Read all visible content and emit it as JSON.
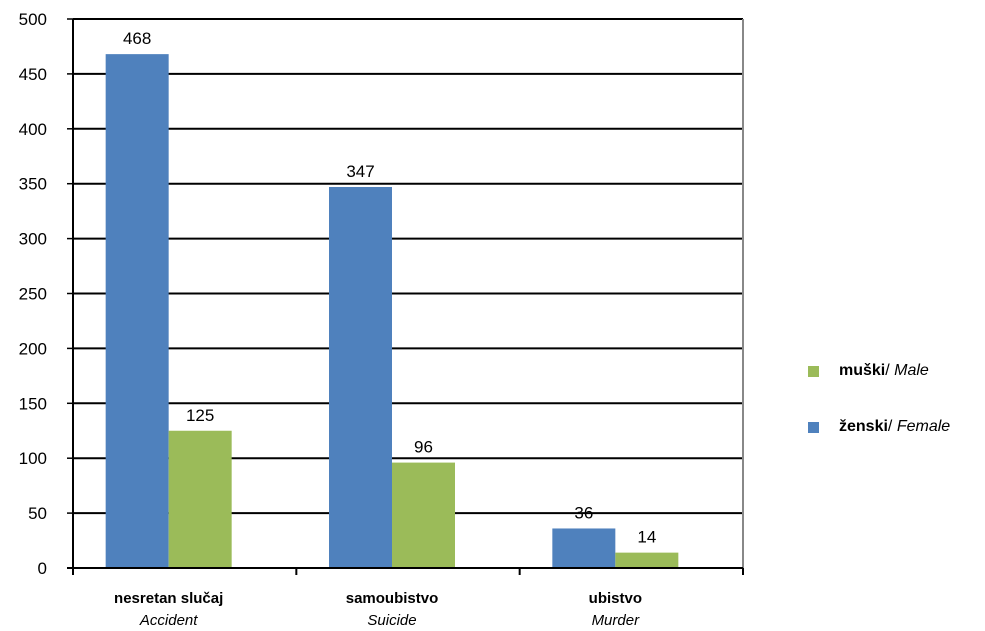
{
  "chart_data": {
    "type": "bar",
    "categories": [
      {
        "main": "nesretan slučaj",
        "sub": "Accident"
      },
      {
        "main": "samoubistvo",
        "sub": "Suicide"
      },
      {
        "main": "ubistvo",
        "sub": "Murder"
      }
    ],
    "series": [
      {
        "name_bold": "ženski",
        "name_rest": "/ ",
        "name_italic": "Female",
        "color": "#4F81BD",
        "values": [
          468,
          347,
          36
        ]
      },
      {
        "name_bold": "muški",
        "name_rest": "/ ",
        "name_italic": "Male",
        "color": "#9BBB59",
        "values": [
          125,
          96,
          14
        ]
      }
    ],
    "ylim": [
      0,
      500
    ],
    "yticks": [
      0,
      50,
      100,
      150,
      200,
      250,
      300,
      350,
      400,
      450,
      500
    ],
    "grid": true,
    "legend_position": "right",
    "legend_order": [
      1,
      0
    ]
  }
}
